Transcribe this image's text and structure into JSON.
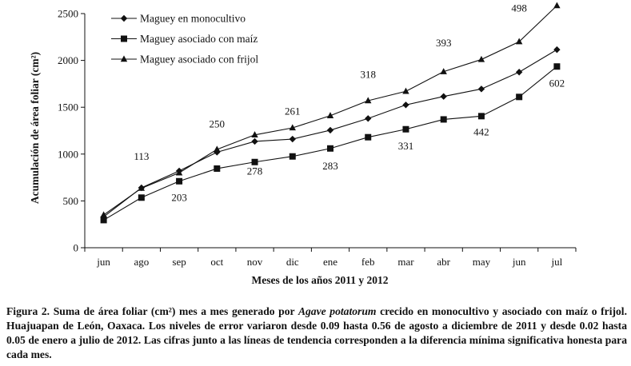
{
  "chart_data": {
    "type": "line",
    "categories": [
      "jun",
      "ago",
      "sep",
      "oct",
      "nov",
      "dic",
      "ene",
      "feb",
      "mar",
      "abr",
      "may",
      "jun",
      "jul"
    ],
    "ylim": [
      0,
      2500
    ],
    "yticks": [
      0,
      500,
      1000,
      1500,
      2000,
      2500
    ],
    "xlabel": "Meses de los años 2011 y 2012",
    "ylabel": "Acumulación de área foliar (cm²)",
    "legend_position": "top-left",
    "series": [
      {
        "name": "Maguey en monocultivo",
        "marker": "diamond",
        "values": [
          330,
          640,
          820,
          1020,
          1135,
          1160,
          1255,
          1380,
          1525,
          1615,
          1695,
          1875,
          2115
        ]
      },
      {
        "name": "Maguey asociado con maíz",
        "marker": "square",
        "values": [
          295,
          535,
          710,
          845,
          915,
          975,
          1060,
          1180,
          1265,
          1370,
          1405,
          1610,
          1935
        ]
      },
      {
        "name": "Maguey asociado con frijol",
        "marker": "triangle",
        "values": [
          350,
          635,
          800,
          1050,
          1205,
          1280,
          1410,
          1570,
          1670,
          1880,
          2010,
          2200,
          2585
        ]
      }
    ],
    "annotations": [
      {
        "text": "113",
        "category_index": 1,
        "y": 940
      },
      {
        "text": "203",
        "category_index": 2,
        "y": 500
      },
      {
        "text": "250",
        "category_index": 3,
        "y": 1285
      },
      {
        "text": "278",
        "category_index": 4,
        "y": 780
      },
      {
        "text": "261",
        "category_index": 5,
        "y": 1420
      },
      {
        "text": "283",
        "category_index": 6,
        "y": 835
      },
      {
        "text": "318",
        "category_index": 7,
        "y": 1815
      },
      {
        "text": "331",
        "category_index": 8,
        "y": 1050
      },
      {
        "text": "393",
        "category_index": 9,
        "y": 2150
      },
      {
        "text": "442",
        "category_index": 10,
        "y": 1200
      },
      {
        "text": "498",
        "category_index": 11,
        "y": 2520
      },
      {
        "text": "602",
        "category_index": 12,
        "y": 1720
      }
    ]
  },
  "caption": {
    "part1": "Figura 2. Suma de área foliar (cm²) mes a mes generado por ",
    "species": "Agave potatorum",
    "part2": " crecido en monocultivo y asociado con maíz o frijol. Huajuapan de León, Oaxaca. Los niveles de error variaron desde 0.09 hasta 0.56 de agosto a diciembre de 2011 y desde 0.02 hasta 0.05 de enero a julio de 2012. Las cifras junto a las líneas de tendencia corresponden a la diferencia mínima significativa honesta para cada mes."
  }
}
